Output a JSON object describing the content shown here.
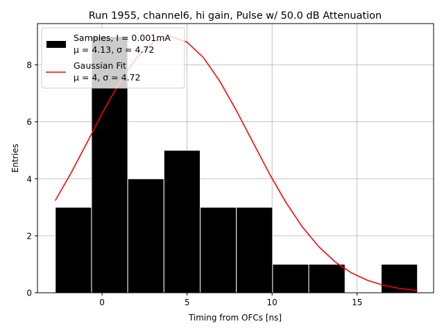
{
  "chart_data": {
    "type": "bar",
    "title": "Run 1955, channel6, hi gain, Pulse w/ 50.0 dB Attenuation",
    "xlabel": "Timing from OFCs [ns]",
    "ylabel": "Entries",
    "xlim": [
      -3.8,
      19.5
    ],
    "ylim": [
      0,
      9.45
    ],
    "xticks": [
      0,
      5,
      10,
      15
    ],
    "yticks": [
      0,
      2,
      4,
      6,
      8
    ],
    "grid": true,
    "legend_position": "top-left",
    "histogram": {
      "name_line1": "Samples, I = 0.001mA",
      "name_line2": "μ = 4.13, σ = 4.72",
      "color": "#000000",
      "edge_color": "#ffffff",
      "bin_edges": [
        -2.75,
        -0.62,
        1.51,
        3.64,
        5.77,
        7.9,
        10.03,
        12.16,
        14.29,
        16.42,
        18.55
      ],
      "counts": [
        3,
        9,
        4,
        5,
        3,
        3,
        1,
        1,
        0,
        1
      ]
    },
    "fit": {
      "name_line1": "Gaussian Fit",
      "name_line2": "μ = 4, σ = 4.72",
      "color": "#ff0000",
      "mu": 4,
      "sigma": 4.72,
      "amplitude": 9.0,
      "x_range": [
        -2.75,
        18.55
      ]
    }
  }
}
